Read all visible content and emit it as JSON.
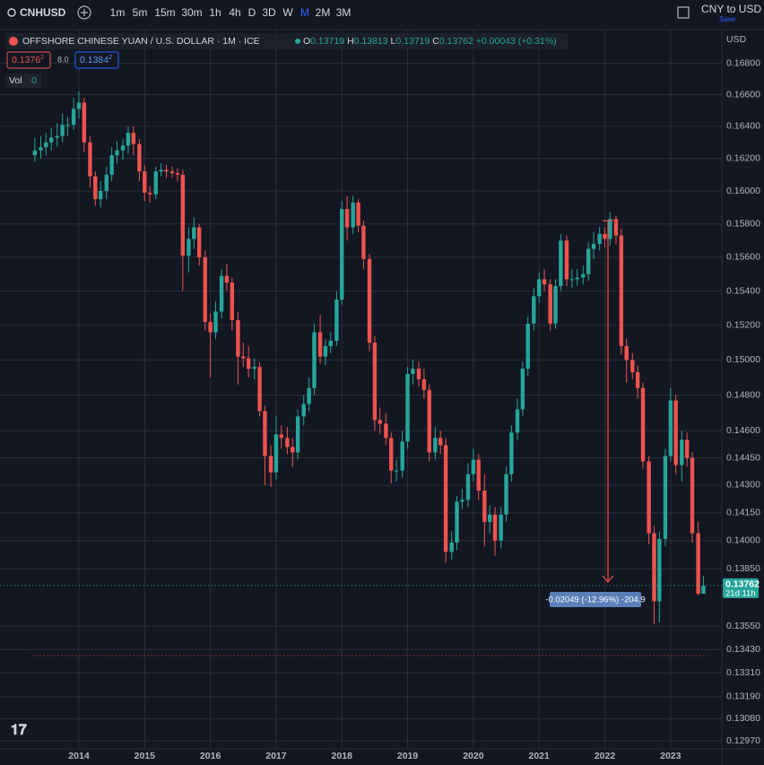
{
  "ui": {
    "symbol": "CNHUSD",
    "intervals": [
      "1m",
      "5m",
      "15m",
      "30m",
      "1h",
      "4h",
      "D",
      "3D",
      "W",
      "M",
      "2M",
      "3M"
    ],
    "conversion": "CNY to USD",
    "save": "Save"
  },
  "chart_data": {
    "type": "candlestick",
    "title": "OFFSHORE CHINESE YUAN / U.S. DOLLAR · 1M · ICE",
    "x": [
      2013.33,
      2013.42,
      2013.5,
      2013.58,
      2013.67,
      2013.75,
      2013.83,
      2013.92,
      2014,
      2014.08,
      2014.17,
      2014.25,
      2014.33,
      2014.42,
      2014.5,
      2014.58,
      2014.67,
      2014.75,
      2014.83,
      2014.92,
      2015,
      2015.08,
      2015.17,
      2015.25,
      2015.33,
      2015.42,
      2015.5,
      2015.58,
      2015.67,
      2015.75,
      2015.83,
      2015.92,
      2016,
      2016.08,
      2016.17,
      2016.25,
      2016.33,
      2016.42,
      2016.5,
      2016.58,
      2016.67,
      2016.75,
      2016.83,
      2016.92,
      2017,
      2017.08,
      2017.17,
      2017.25,
      2017.33,
      2017.42,
      2017.5,
      2017.58,
      2017.67,
      2017.75,
      2017.83,
      2017.92,
      2018,
      2018.08,
      2018.17,
      2018.25,
      2018.33,
      2018.42,
      2018.5,
      2018.58,
      2018.67,
      2018.75,
      2018.83,
      2018.92,
      2019,
      2019.08,
      2019.17,
      2019.25,
      2019.33,
      2019.42,
      2019.5,
      2019.58,
      2019.67,
      2019.75,
      2019.83,
      2019.92,
      2020,
      2020.08,
      2020.17,
      2020.25,
      2020.33,
      2020.42,
      2020.5,
      2020.58,
      2020.67,
      2020.75,
      2020.83,
      2020.92,
      2021,
      2021.08,
      2021.17,
      2021.25,
      2021.33,
      2021.42,
      2021.5,
      2021.58,
      2021.67,
      2021.75,
      2021.83,
      2021.92,
      2022,
      2022.08,
      2022.17,
      2022.25,
      2022.33,
      2022.42,
      2022.5,
      2022.58,
      2022.67,
      2022.75,
      2022.83,
      2022.92,
      2023,
      2023.08,
      2023.17,
      2023.25,
      2023.33,
      2023.42,
      2023.5
    ],
    "open": [
      0.1622,
      0.1625,
      0.1627,
      0.163,
      0.1633,
      0.1634,
      0.1641,
      0.1641,
      0.1651,
      0.1655,
      0.163,
      0.1609,
      0.1595,
      0.16,
      0.161,
      0.1622,
      0.1625,
      0.1628,
      0.1636,
      0.1629,
      0.1612,
      0.1599,
      0.1598,
      0.1612,
      0.1613,
      0.1612,
      0.1611,
      0.161,
      0.1561,
      0.1571,
      0.1578,
      0.156,
      0.1522,
      0.1516,
      0.1528,
      0.1549,
      0.1545,
      0.1523,
      0.1502,
      0.1501,
      0.1495,
      0.1496,
      0.1471,
      0.1446,
      0.1437,
      0.1458,
      0.1456,
      0.1451,
      0.1448,
      0.1468,
      0.1475,
      0.1484,
      0.1516,
      0.1502,
      0.1508,
      0.1511,
      0.1535,
      0.1589,
      0.1578,
      0.1593,
      0.1579,
      0.1559,
      0.151,
      0.1466,
      0.1464,
      0.1456,
      0.1438,
      0.1438,
      0.1454,
      0.1492,
      0.1495,
      0.1489,
      0.1483,
      0.1448,
      0.1456,
      0.1452,
      0.1394,
      0.1399,
      0.1421,
      0.1422,
      0.1436,
      0.1444,
      0.1427,
      0.141,
      0.1414,
      0.14,
      0.1414,
      0.1436,
      0.1459,
      0.1472,
      0.1495,
      0.1521,
      0.1537,
      0.1547,
      0.1544,
      0.1521,
      0.1543,
      0.157,
      0.1547,
      0.1547,
      0.1548,
      0.155,
      0.1565,
      0.1568,
      0.1574,
      0.1571,
      0.1583,
      0.1573,
      0.1508,
      0.15,
      0.1493,
      0.1484,
      0.1443,
      0.1404,
      0.1368,
      0.1401,
      0.1446,
      0.1477,
      0.1441,
      0.1455,
      0.1445,
      0.1404,
      0.13719
    ],
    "high": [
      0.1633,
      0.1634,
      0.1636,
      0.1639,
      0.1642,
      0.1648,
      0.1646,
      0.1658,
      0.1662,
      0.1658,
      0.1634,
      0.1612,
      0.1606,
      0.1615,
      0.1627,
      0.1631,
      0.1632,
      0.164,
      0.164,
      0.1632,
      0.1616,
      0.1603,
      0.1615,
      0.1617,
      0.1616,
      0.1615,
      0.1614,
      0.1613,
      0.1578,
      0.1584,
      0.158,
      0.1564,
      0.1527,
      0.1534,
      0.1553,
      0.1556,
      0.1548,
      0.1528,
      0.151,
      0.1508,
      0.1501,
      0.1499,
      0.1474,
      0.1452,
      0.1468,
      0.1463,
      0.1462,
      0.1456,
      0.1472,
      0.148,
      0.149,
      0.1521,
      0.1526,
      0.1512,
      0.1516,
      0.154,
      0.1594,
      0.1597,
      0.1597,
      0.1595,
      0.1582,
      0.1562,
      0.1514,
      0.1473,
      0.147,
      0.1459,
      0.1444,
      0.146,
      0.1496,
      0.15,
      0.1499,
      0.1495,
      0.1486,
      0.1462,
      0.146,
      0.1456,
      0.1405,
      0.1424,
      0.1428,
      0.1442,
      0.145,
      0.1447,
      0.1436,
      0.1419,
      0.1418,
      0.1418,
      0.144,
      0.1463,
      0.1478,
      0.1499,
      0.1525,
      0.1542,
      0.1551,
      0.1553,
      0.1547,
      0.1547,
      0.1574,
      0.1573,
      0.1553,
      0.1553,
      0.1555,
      0.1569,
      0.1575,
      0.1578,
      0.1578,
      0.1587,
      0.1585,
      0.1577,
      0.1512,
      0.1504,
      0.1497,
      0.1487,
      0.1446,
      0.1408,
      0.1405,
      0.145,
      0.1484,
      0.148,
      0.146,
      0.1459,
      0.1448,
      0.141,
      0.13813
    ],
    "low": [
      0.1618,
      0.162,
      0.1622,
      0.1625,
      0.1627,
      0.163,
      0.1634,
      0.1638,
      0.1645,
      0.1624,
      0.1602,
      0.1591,
      0.159,
      0.1595,
      0.1606,
      0.1617,
      0.1619,
      0.1623,
      0.1622,
      0.1606,
      0.1594,
      0.1593,
      0.1595,
      0.1609,
      0.1608,
      0.1608,
      0.1606,
      0.154,
      0.1551,
      0.1565,
      0.1555,
      0.1517,
      0.149,
      0.1512,
      0.1524,
      0.154,
      0.1517,
      0.1486,
      0.1496,
      0.149,
      0.1489,
      0.1468,
      0.143,
      0.1429,
      0.1433,
      0.145,
      0.1447,
      0.144,
      0.1444,
      0.1463,
      0.1471,
      0.148,
      0.1498,
      0.1497,
      0.1504,
      0.1508,
      0.1532,
      0.157,
      0.1574,
      0.1575,
      0.1553,
      0.1505,
      0.146,
      0.1458,
      0.1452,
      0.1431,
      0.1432,
      0.1434,
      0.145,
      0.1486,
      0.1485,
      0.1478,
      0.1443,
      0.1444,
      0.1447,
      0.1388,
      0.139,
      0.1395,
      0.1417,
      0.1418,
      0.1432,
      0.1422,
      0.1397,
      0.1404,
      0.1392,
      0.1396,
      0.141,
      0.1432,
      0.1455,
      0.1468,
      0.1491,
      0.1517,
      0.1533,
      0.154,
      0.1517,
      0.1518,
      0.154,
      0.1543,
      0.1542,
      0.1543,
      0.1544,
      0.1546,
      0.1559,
      0.1564,
      0.1566,
      0.1567,
      0.1568,
      0.1503,
      0.1487,
      0.1489,
      0.1478,
      0.1439,
      0.1398,
      0.1356,
      0.1357,
      0.1397,
      0.1443,
      0.1436,
      0.1432,
      0.144,
      0.1399,
      0.1371,
      0.13719
    ],
    "close": [
      0.1625,
      0.1627,
      0.163,
      0.1633,
      0.1634,
      0.1641,
      0.1641,
      0.1651,
      0.1655,
      0.163,
      0.1609,
      0.1595,
      0.16,
      0.161,
      0.1622,
      0.1625,
      0.1628,
      0.1636,
      0.1629,
      0.1612,
      0.1599,
      0.1598,
      0.1612,
      0.1613,
      0.1612,
      0.1611,
      0.161,
      0.1561,
      0.1571,
      0.1578,
      0.156,
      0.1522,
      0.1516,
      0.1528,
      0.1549,
      0.1545,
      0.1523,
      0.1502,
      0.1501,
      0.1495,
      0.1496,
      0.1471,
      0.1446,
      0.1437,
      0.1458,
      0.1456,
      0.1451,
      0.1448,
      0.1468,
      0.1475,
      0.1484,
      0.1516,
      0.1502,
      0.1508,
      0.1511,
      0.1535,
      0.1589,
      0.1578,
      0.1593,
      0.1579,
      0.1559,
      0.151,
      0.1466,
      0.1464,
      0.1456,
      0.1438,
      0.1438,
      0.1454,
      0.1492,
      0.1495,
      0.1489,
      0.1483,
      0.1448,
      0.1456,
      0.1452,
      0.1394,
      0.1399,
      0.1421,
      0.1422,
      0.1436,
      0.1444,
      0.1427,
      0.141,
      0.1414,
      0.14,
      0.1414,
      0.1436,
      0.1459,
      0.1472,
      0.1495,
      0.1521,
      0.1537,
      0.1547,
      0.1544,
      0.1521,
      0.1543,
      0.157,
      0.1547,
      0.1547,
      0.1548,
      0.155,
      0.1565,
      0.1568,
      0.1574,
      0.1571,
      0.1583,
      0.1573,
      0.1508,
      0.15,
      0.1493,
      0.1484,
      0.1443,
      0.1404,
      0.1368,
      0.1401,
      0.1446,
      0.1477,
      0.1441,
      0.1455,
      0.1445,
      0.1404,
      0.13719,
      0.13762
    ],
    "up_color": "#26a69a",
    "down_color": "#ef5350",
    "log_scale": true,
    "grid": true,
    "xlim": [
      2012.8,
      2023.78
    ],
    "xticks": [
      2014,
      2015,
      2016,
      2017,
      2018,
      2019,
      2020,
      2021,
      2022,
      2023
    ],
    "ylim": [
      0.1293,
      0.17
    ],
    "yticks": [
      {
        "value": 0.168,
        "label": "0.16800"
      },
      {
        "value": 0.166,
        "label": "0.16600"
      },
      {
        "value": 0.164,
        "label": "0.16400"
      },
      {
        "value": 0.162,
        "label": "0.16200"
      },
      {
        "value": 0.16,
        "label": "0.16000"
      },
      {
        "value": 0.158,
        "label": "0.15800"
      },
      {
        "value": 0.156,
        "label": "0.15600"
      },
      {
        "value": 0.154,
        "label": "0.15400"
      },
      {
        "value": 0.152,
        "label": "0.15200"
      },
      {
        "value": 0.15,
        "label": "0.15000"
      },
      {
        "value": 0.148,
        "label": "0.14800"
      },
      {
        "value": 0.146,
        "label": "0.14600"
      },
      {
        "value": 0.1445,
        "label": "0.14450"
      },
      {
        "value": 0.143,
        "label": "0.14300"
      },
      {
        "value": 0.1415,
        "label": "0.14150"
      },
      {
        "value": 0.14,
        "label": "0.14000"
      },
      {
        "value": 0.1385,
        "label": "0.13850"
      },
      {
        "value": 0.1355,
        "label": "0.13550"
      },
      {
        "value": 0.1343,
        "label": "0.13430"
      },
      {
        "value": 0.1331,
        "label": "0.13310"
      },
      {
        "value": 0.1319,
        "label": "0.13190"
      },
      {
        "value": 0.1308,
        "label": "0.13080"
      },
      {
        "value": 0.1297,
        "label": "0.12970"
      }
    ],
    "y_axis_label": "USD",
    "legend": {
      "o_label": "O",
      "h_label": "H",
      "l_label": "L",
      "c_label": "C",
      "change": "+0.00043 (+0.31%)"
    },
    "quote": {
      "sell": "0.1376",
      "sell_pip": "2",
      "spread": "8.0",
      "buy": "0.1384",
      "buy_pip": "2"
    },
    "volume_label": "Vol",
    "volume": 0,
    "measure": "-0.02049 (-12.96%) -204.9",
    "countdown": "21d 11h"
  }
}
